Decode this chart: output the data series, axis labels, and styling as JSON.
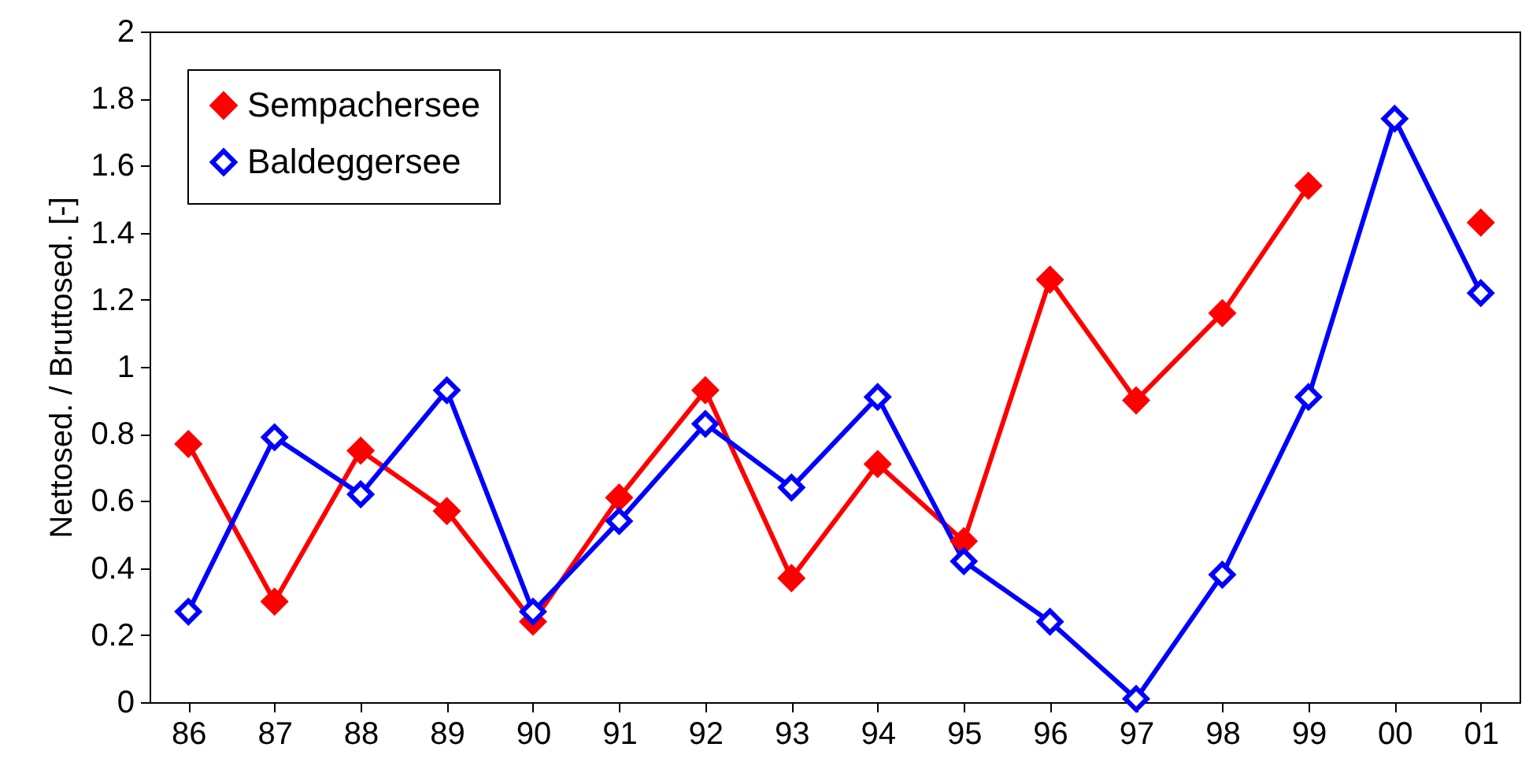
{
  "chart_data": {
    "type": "line",
    "ylabel": "Nettosed. / Bruttosed. [-]",
    "categories": [
      "86",
      "87",
      "88",
      "89",
      "90",
      "91",
      "92",
      "93",
      "94",
      "95",
      "96",
      "97",
      "98",
      "99",
      "00",
      "01"
    ],
    "series": [
      {
        "name": "Sempachersee",
        "color": "#ff0000",
        "values": [
          0.77,
          0.3,
          0.75,
          0.57,
          0.24,
          0.61,
          0.93,
          0.37,
          0.71,
          0.48,
          1.26,
          0.9,
          1.16,
          1.54,
          null,
          1.43
        ]
      },
      {
        "name": "Baldeggersee",
        "color": "#0000ff",
        "values": [
          0.27,
          0.79,
          0.62,
          0.93,
          0.27,
          0.54,
          0.83,
          0.64,
          0.91,
          0.42,
          0.24,
          0.01,
          0.38,
          0.91,
          1.74,
          1.22
        ]
      }
    ],
    "ylim": [
      0,
      2
    ],
    "yticks": [
      0,
      0.2,
      0.4,
      0.6,
      0.8,
      1,
      1.2,
      1.4,
      1.6,
      1.8,
      2
    ],
    "grid": false,
    "legend": "top left",
    "marker": "diamond",
    "line_style": "solid"
  }
}
